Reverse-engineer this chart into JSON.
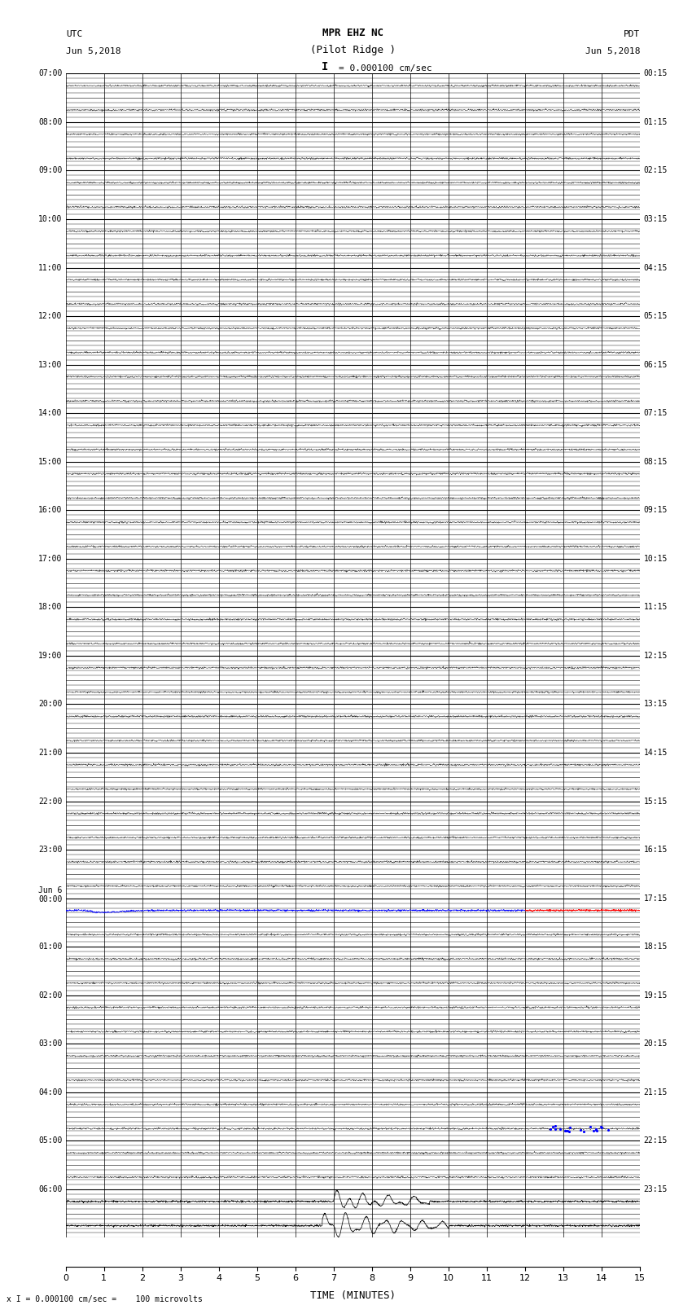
{
  "title_line1": "MPR EHZ NC",
  "title_line2": "(Pilot Ridge )",
  "scale_text": "I = 0.000100 cm/sec",
  "left_header1": "UTC",
  "left_header2": "Jun 5,2018",
  "right_header1": "PDT",
  "right_header2": "Jun 5,2018",
  "footer": "x I = 0.000100 cm/sec =    100 microvolts",
  "xlabel": "TIME (MINUTES)",
  "figsize": [
    8.5,
    16.13
  ],
  "dpi": 100,
  "n_rows": 48,
  "minutes_per_row": 15,
  "x_ticks": [
    0,
    1,
    2,
    3,
    4,
    5,
    6,
    7,
    8,
    9,
    10,
    11,
    12,
    13,
    14,
    15
  ],
  "utc_labels": [
    "07:00",
    "",
    "08:00",
    "",
    "09:00",
    "",
    "10:00",
    "",
    "11:00",
    "",
    "12:00",
    "",
    "13:00",
    "",
    "14:00",
    "",
    "15:00",
    "",
    "16:00",
    "",
    "17:00",
    "",
    "18:00",
    "",
    "19:00",
    "",
    "20:00",
    "",
    "21:00",
    "",
    "22:00",
    "",
    "23:00",
    "",
    "Jun 6\n00:00",
    "",
    "01:00",
    "",
    "02:00",
    "",
    "03:00",
    "",
    "04:00",
    "",
    "05:00",
    "",
    "06:00",
    ""
  ],
  "pdt_labels": [
    "00:15",
    "",
    "01:15",
    "",
    "02:15",
    "",
    "03:15",
    "",
    "04:15",
    "",
    "05:15",
    "",
    "06:15",
    "",
    "07:15",
    "",
    "08:15",
    "",
    "09:15",
    "",
    "10:15",
    "",
    "11:15",
    "",
    "12:15",
    "",
    "13:15",
    "",
    "14:15",
    "",
    "15:15",
    "",
    "16:15",
    "",
    "17:15",
    "",
    "18:15",
    "",
    "19:15",
    "",
    "20:15",
    "",
    "21:15",
    "",
    "22:15",
    "",
    "23:15",
    ""
  ],
  "bg_color": "#ffffff",
  "trace_color": "#000000",
  "blue_row_idx": 34,
  "red_row_idx": 34,
  "seismic_rows": [
    46,
    47
  ],
  "blue_dot_row_idx": 43
}
